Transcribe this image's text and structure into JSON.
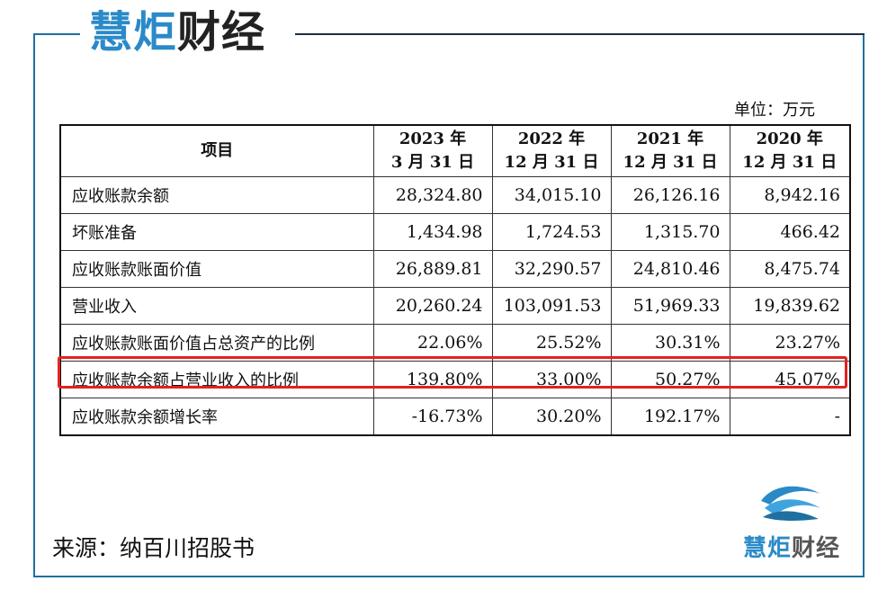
{
  "header": {
    "logo_blue": "慧炬",
    "logo_dark": "财经"
  },
  "unit_label": "单位：万元",
  "table": {
    "headers": [
      {
        "line1": "项目",
        "line2": ""
      },
      {
        "line1": "2023 年",
        "line2": "3 月 31 日"
      },
      {
        "line1": "2022 年",
        "line2": "12 月 31 日"
      },
      {
        "line1": "2021 年",
        "line2": "12 月 31 日"
      },
      {
        "line1": "2020 年",
        "line2": "12 月 31 日"
      }
    ],
    "rows": [
      {
        "label": "应收账款余额",
        "values": [
          "28,324.80",
          "34,015.10",
          "26,126.16",
          "8,942.16"
        ]
      },
      {
        "label": "坏账准备",
        "values": [
          "1,434.98",
          "1,724.53",
          "1,315.70",
          "466.42"
        ]
      },
      {
        "label": "应收账款账面价值",
        "values": [
          "26,889.81",
          "32,290.57",
          "24,810.46",
          "8,475.74"
        ]
      },
      {
        "label": "营业收入",
        "values": [
          "20,260.24",
          "103,091.53",
          "51,969.33",
          "19,839.62"
        ]
      },
      {
        "label": "应收账款账面价值占总资产的比例",
        "values": [
          "22.06%",
          "25.52%",
          "30.31%",
          "23.27%"
        ]
      },
      {
        "label": "应收账款余额占营业收入的比例",
        "values": [
          "139.80%",
          "33.00%",
          "50.27%",
          "45.07%"
        ]
      },
      {
        "label": "应收账款余额增长率",
        "values": [
          "-16.73%",
          "30.20%",
          "192.17%",
          "-"
        ]
      }
    ]
  },
  "source_text": "来源：纳百川招股书",
  "footer_logo": {
    "blue": "慧炬",
    "dark": "财经"
  },
  "colors": {
    "brand_blue": "#2a8ac8",
    "highlight_red": "#e0231f"
  },
  "icons": [
    "logo-wave-icon"
  ]
}
